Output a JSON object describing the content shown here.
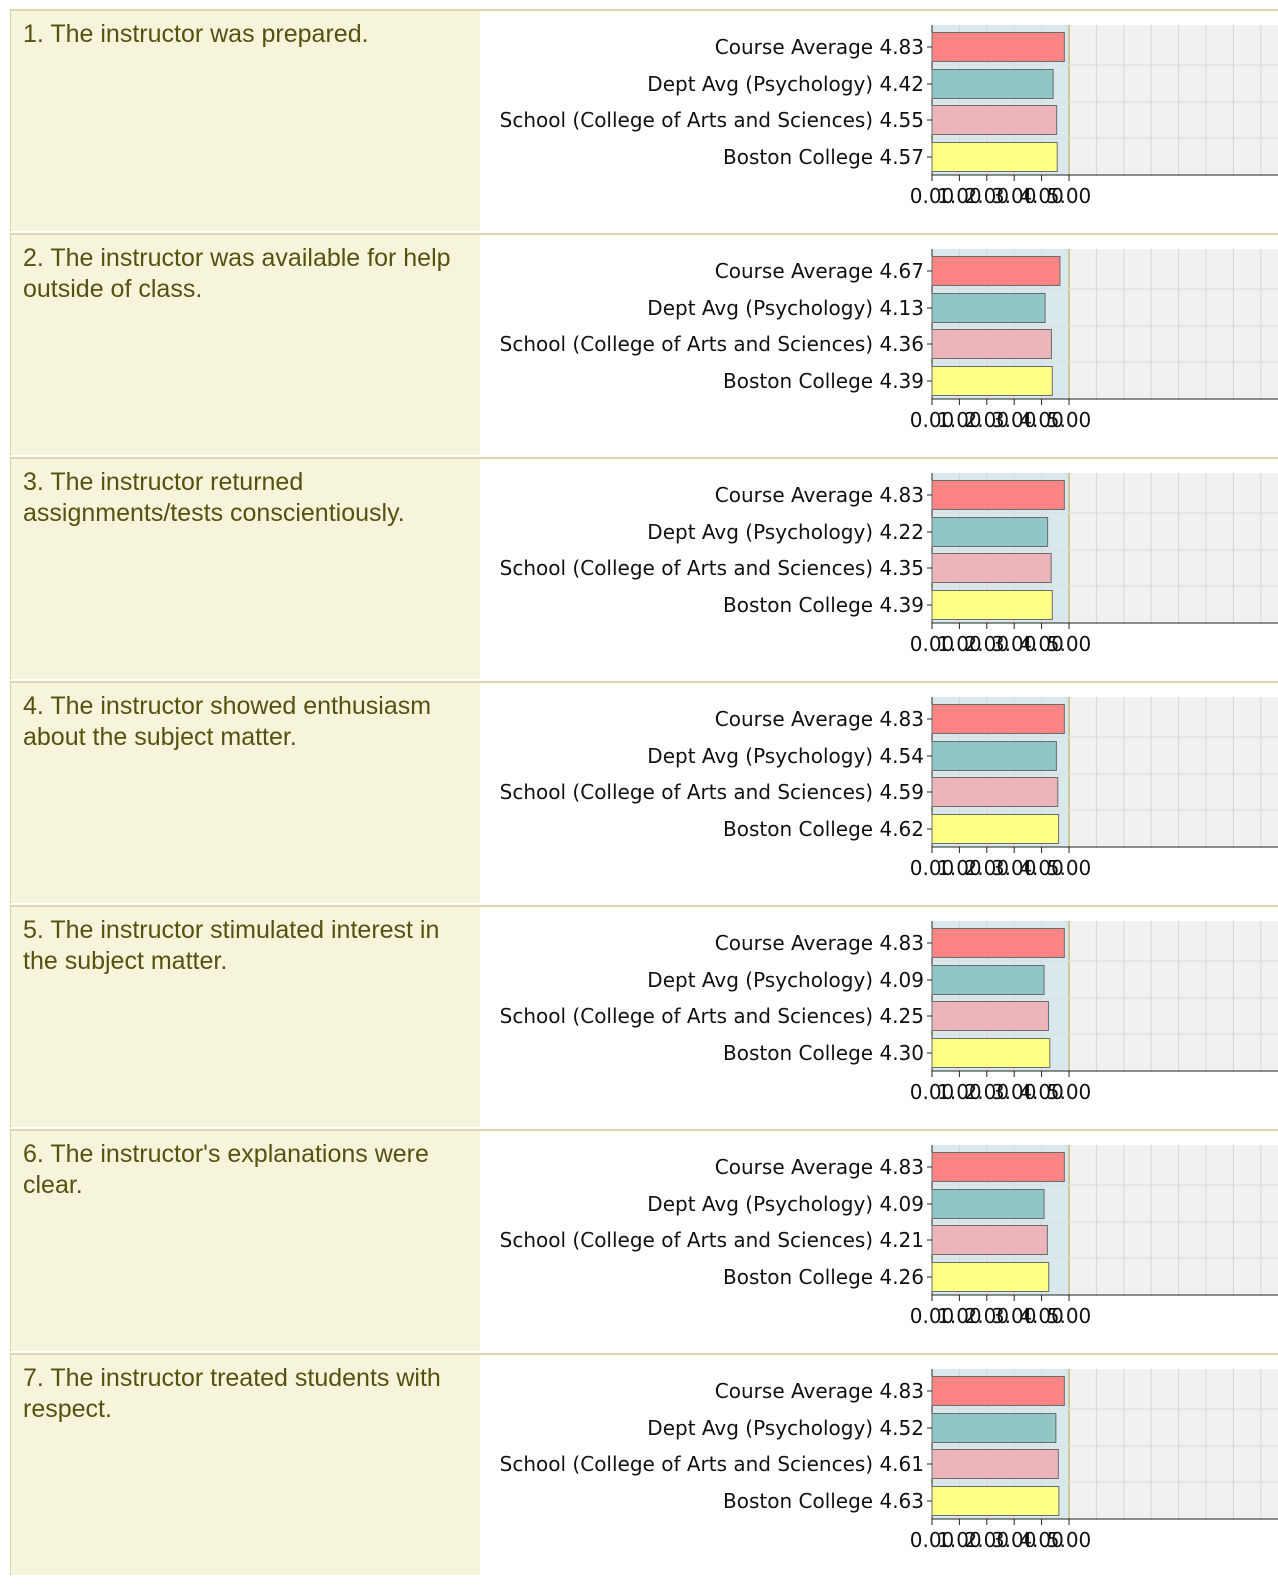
{
  "series_names": [
    "Course Average",
    "Dept Avg (Psychology)",
    "School (College of Arts and Sciences)",
    "Boston College"
  ],
  "series_colors": [
    "#ff8585",
    "#8fc7c7",
    "#ebb5bb",
    "#ffff85"
  ],
  "x_ticks": [
    "0.00",
    "1.00",
    "2.00",
    "3.00",
    "4.00",
    "5.00"
  ],
  "questions": [
    {
      "text": "1. The instructor was prepared.",
      "values": [
        "4.83",
        "4.42",
        "4.55",
        "4.57"
      ]
    },
    {
      "text": "2. The instructor was available for help outside of class.",
      "values": [
        "4.67",
        "4.13",
        "4.36",
        "4.39"
      ]
    },
    {
      "text": "3. The instructor returned assignments/tests conscientiously.",
      "values": [
        "4.83",
        "4.22",
        "4.35",
        "4.39"
      ]
    },
    {
      "text": "4. The instructor showed enthusiasm about the subject matter.",
      "values": [
        "4.83",
        "4.54",
        "4.59",
        "4.62"
      ]
    },
    {
      "text": "5. The instructor stimulated interest in the subject matter.",
      "values": [
        "4.83",
        "4.09",
        "4.25",
        "4.30"
      ]
    },
    {
      "text": "6. The instructor's explanations were clear.",
      "values": [
        "4.83",
        "4.09",
        "4.21",
        "4.26"
      ]
    },
    {
      "text": "7. The instructor treated students with respect.",
      "values": [
        "4.83",
        "4.52",
        "4.61",
        "4.63"
      ]
    }
  ],
  "chart_data": {
    "type": "bar",
    "orientation": "horizontal",
    "categories": [
      "Course Average",
      "Dept Avg (Psychology)",
      "School (College of Arts and Sciences)",
      "Boston College"
    ],
    "xlim": [
      0,
      5.8
    ],
    "x_ticks": [
      0,
      1,
      2,
      3,
      4,
      5
    ],
    "panels": [
      {
        "title": "1. The instructor was prepared.",
        "values": [
          4.83,
          4.42,
          4.55,
          4.57
        ]
      },
      {
        "title": "2. The instructor was available for help outside of class.",
        "values": [
          4.67,
          4.13,
          4.36,
          4.39
        ]
      },
      {
        "title": "3. The instructor returned assignments/tests conscientiously.",
        "values": [
          4.83,
          4.22,
          4.35,
          4.39
        ]
      },
      {
        "title": "4. The instructor showed enthusiasm about the subject matter.",
        "values": [
          4.83,
          4.54,
          4.59,
          4.62
        ]
      },
      {
        "title": "5. The instructor stimulated interest in the subject matter.",
        "values": [
          4.83,
          4.09,
          4.25,
          4.3
        ]
      },
      {
        "title": "6. The instructor's explanations were clear.",
        "values": [
          4.83,
          4.09,
          4.21,
          4.26
        ]
      },
      {
        "title": "7. The instructor treated students with respect.",
        "values": [
          4.83,
          4.52,
          4.61,
          4.63
        ]
      }
    ],
    "grid": true,
    "legend": "none"
  }
}
